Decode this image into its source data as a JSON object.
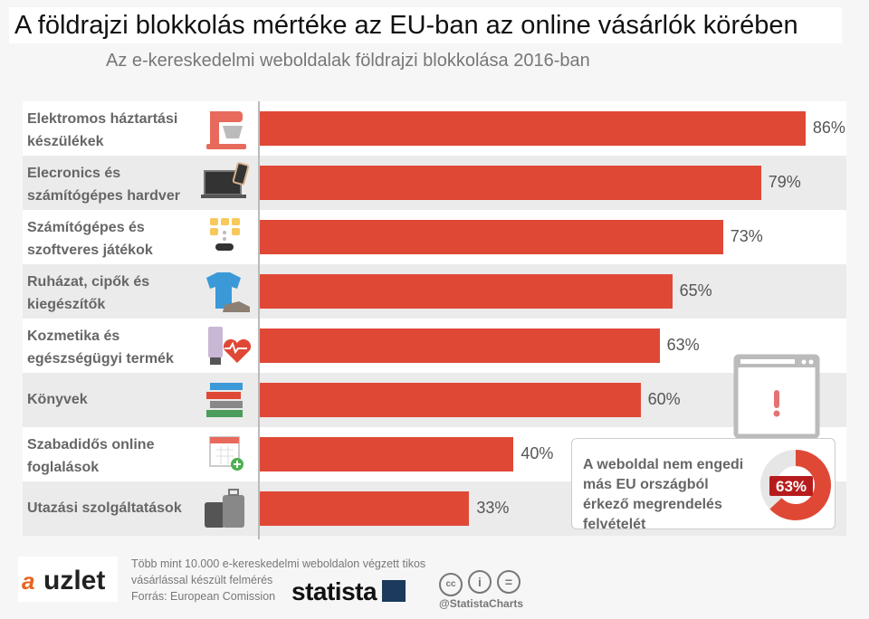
{
  "title": "A földrajzi blokkolás mértéke az EU-ban az online vásárlók körében",
  "subtitle": "Az e-kereskedelmi weboldalak földrajzi blokkolása 2016-ban",
  "chart_data": {
    "type": "bar",
    "orientation": "horizontal",
    "categories": [
      "Elektromos háztartási készülékek",
      "Elecronics és számítógépes hardver",
      "Számítógépes és szoftveres játékok",
      "Ruházat, cipők és kiegészítők",
      "Kozmetika és egészségügyi termék",
      "Könyvek",
      "Szabadidős online foglalások",
      "Utazási szolgáltatások"
    ],
    "values": [
      86,
      79,
      73,
      65,
      63,
      60,
      40,
      33
    ],
    "value_labels": [
      "86%",
      "79%",
      "73%",
      "65%",
      "63%",
      "60%",
      "40%",
      "33%"
    ],
    "icons": [
      "stand-mixer-icon",
      "laptop-phone-icon",
      "gamepad-icon",
      "shirt-shoe-icon",
      "cosmetics-heart-icon",
      "books-icon",
      "calendar-add-icon",
      "luggage-icon"
    ],
    "xlim": [
      0,
      100
    ],
    "bar_color": "#e04836",
    "unit": "%"
  },
  "callout": {
    "text": "A weboldal nem engedi más EU országból érkező megrendelés felvételét",
    "value": 63,
    "value_label": "63%",
    "icon": "browser-warning-icon"
  },
  "footer": {
    "note_line1": "Több mint 10.000 e-kereskedelmi weboldalon végzett tikos",
    "note_line2": "vásárlással készült felmérés",
    "source": "Forrás: European Comission",
    "logo_left": "azuzlet",
    "logo_statista": "statista",
    "handle": "@StatistaCharts",
    "license_icons": [
      "cc-icon",
      "by-icon",
      "nd-icon"
    ]
  }
}
